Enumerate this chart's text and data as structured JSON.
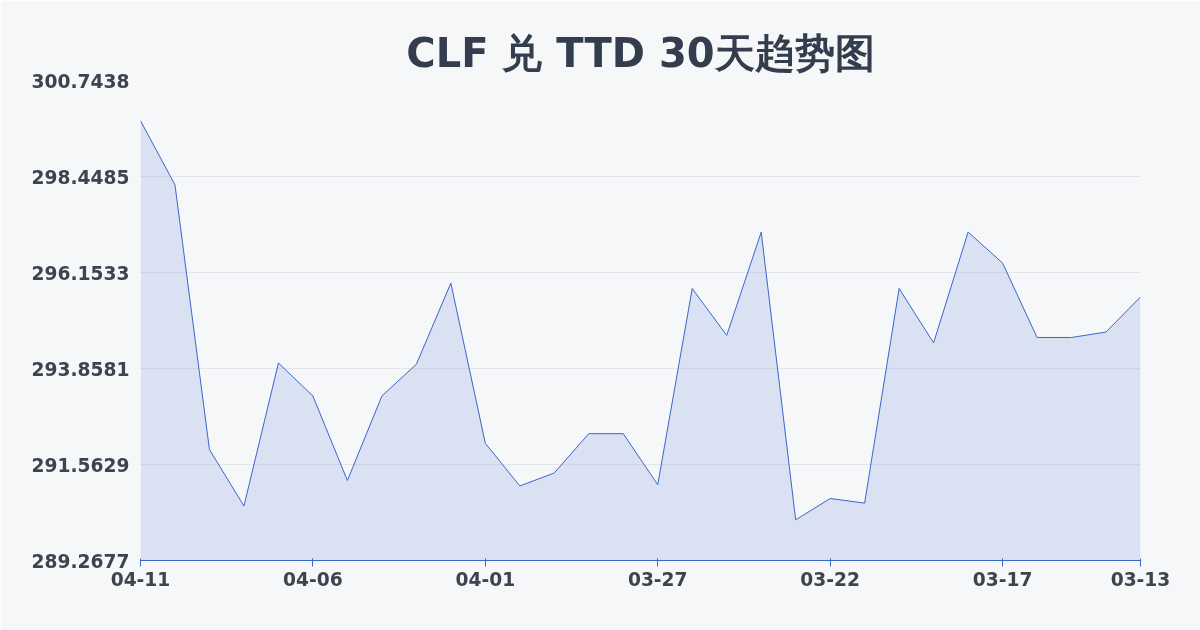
{
  "chart_data": {
    "type": "area",
    "title": "CLF 兑 TTD 30天趋势图",
    "categories": [
      "04-11",
      null,
      null,
      null,
      null,
      "04-06",
      null,
      null,
      null,
      null,
      "04-01",
      null,
      null,
      null,
      null,
      "03-27",
      null,
      null,
      null,
      null,
      "03-22",
      null,
      null,
      null,
      null,
      "03-17",
      null,
      null,
      null,
      "03-13"
    ],
    "series": [
      {
        "color": "#3a66cc",
        "values": [
          299.78,
          298.25,
          291.92,
          290.57,
          293.99,
          293.2,
          291.18,
          293.2,
          293.96,
          295.9,
          292.07,
          291.05,
          291.36,
          292.3,
          292.3,
          291.08,
          295.77,
          294.65,
          297.12,
          290.24,
          290.75,
          290.64,
          295.77,
          294.47,
          297.12,
          296.38,
          294.6,
          294.6,
          294.73,
          295.57
        ]
      }
    ],
    "ylim": [
      289.2677,
      300.7438
    ],
    "yticks": [
      289.2677,
      291.5629,
      293.8581,
      296.1533,
      298.4485,
      300.7438
    ],
    "grid": "y"
  }
}
